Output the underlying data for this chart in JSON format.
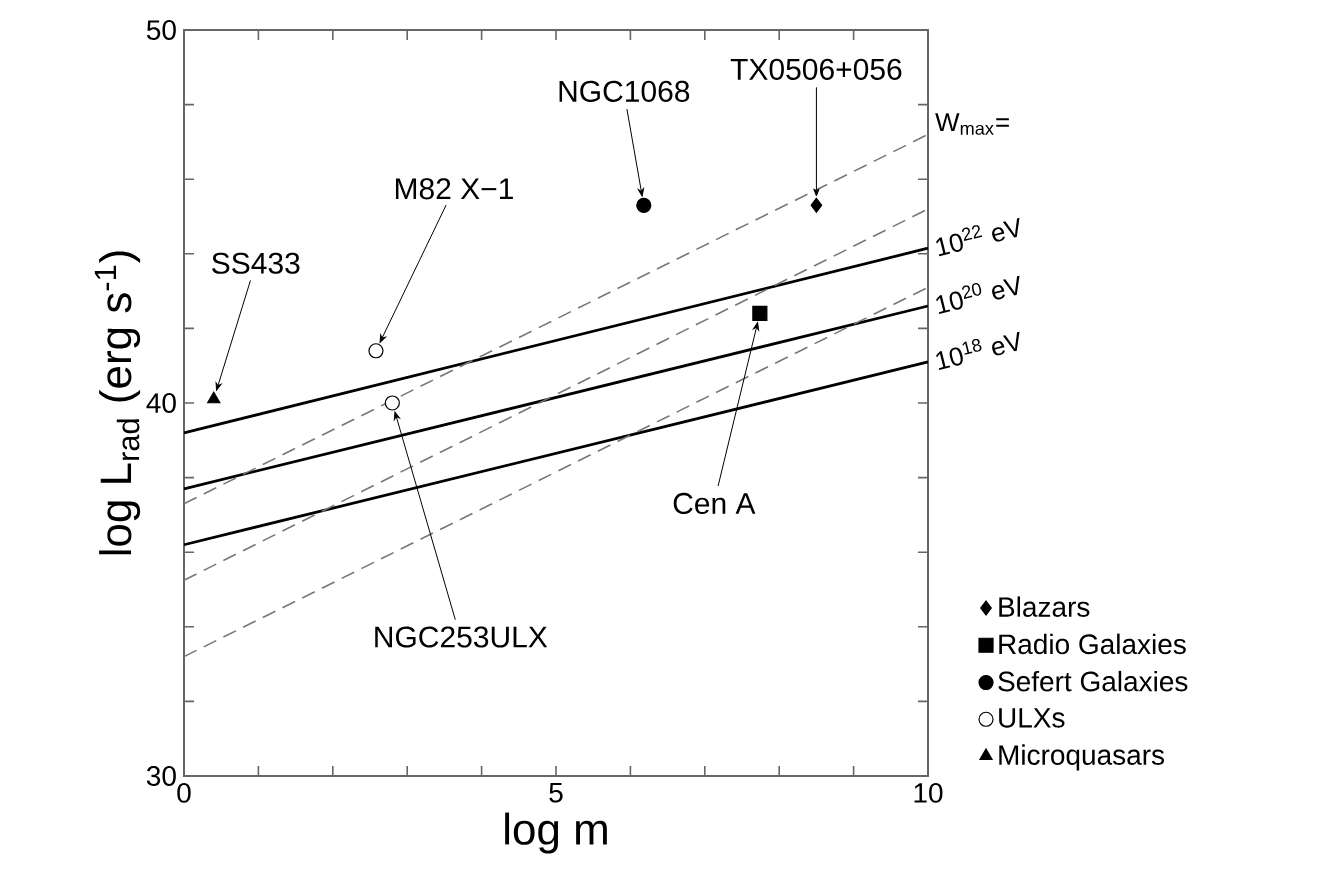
{
  "chart_data": {
    "type": "scatter",
    "xlabel": "log m",
    "ylabel": "log L$_{rad}$ (erg s$^{-1}$)",
    "xlim": [
      0,
      10
    ],
    "ylim": [
      30,
      50
    ],
    "xticks": [
      0,
      {
        "value": 1,
        "label": null
      },
      {
        "value": 2,
        "label": null
      },
      {
        "value": 3,
        "label": null
      },
      {
        "value": 4,
        "label": null
      },
      5,
      {
        "value": 6,
        "label": null
      },
      {
        "value": 7,
        "label": null
      },
      {
        "value": 8,
        "label": null
      },
      {
        "value": 9,
        "label": null
      },
      10
    ],
    "yticks": [
      30,
      {
        "value": 32,
        "label": null
      },
      {
        "value": 34,
        "label": null
      },
      {
        "value": 36,
        "label": null
      },
      {
        "value": 38,
        "label": null
      },
      40,
      {
        "value": 42,
        "label": null
      },
      {
        "value": 44,
        "label": null
      },
      {
        "value": 46,
        "label": null
      },
      {
        "value": 48,
        "label": null
      },
      50
    ],
    "legend": "right",
    "grid": false,
    "series": [
      {
        "name": "Blazars",
        "marker": "diamond",
        "color": "#000000",
        "x": [
          8.5
        ],
        "values": [
          45.3
        ]
      },
      {
        "name": "Radio Galaxies",
        "marker": "square",
        "color": "#000000",
        "x": [
          7.74
        ],
        "values": [
          42.4
        ]
      },
      {
        "name": "Sefert Galaxies",
        "marker": "circle",
        "color": "#000000",
        "x": [
          6.18
        ],
        "values": [
          45.3
        ]
      },
      {
        "name": "ULXs",
        "marker": "circle",
        "color": "#ffffff",
        "x": [
          2.58,
          2.8
        ],
        "values": [
          41.4,
          40.0
        ]
      },
      {
        "name": "Microquasars",
        "marker": "triangle",
        "color": "#000000",
        "x": [
          0.4
        ],
        "values": [
          40.1
        ]
      },
      {
        "name": "10$^{22}$ eV",
        "type": "line",
        "line_style": "solid",
        "color": "#000000",
        "x": [
          0,
          10
        ],
        "values": [
          39.2,
          44.15
        ]
      },
      {
        "name": "10$^{20}$ eV",
        "type": "line",
        "line_style": "solid",
        "color": "#000000",
        "x": [
          0,
          10
        ],
        "values": [
          37.7,
          42.6
        ]
      },
      {
        "name": "10$^{18}$ eV",
        "type": "line",
        "line_style": "solid",
        "color": "#000000",
        "x": [
          0,
          10
        ],
        "values": [
          36.2,
          41.1
        ]
      },
      {
        "type": "line",
        "line_style": "dashed",
        "color": "#777777",
        "x": [
          0,
          10
        ],
        "values": [
          37.3,
          47.2
        ]
      },
      {
        "type": "line",
        "line_style": "dashed",
        "color": "#777777",
        "x": [
          0,
          10
        ],
        "values": [
          35.25,
          45.2
        ]
      },
      {
        "type": "line",
        "line_style": "dashed",
        "color": "#777777",
        "x": [
          0,
          10
        ],
        "values": [
          33.2,
          43.1
        ]
      }
    ],
    "annotations": [
      {
        "text": "SS433",
        "x": 0.4,
        "y": 40.1
      },
      {
        "text": "M82 X−1",
        "x": 2.58,
        "y": 41.4
      },
      {
        "text": "NGC1068",
        "x": 6.18,
        "y": 45.3
      },
      {
        "text": "TX0506+056",
        "x": 8.5,
        "y": 45.3
      },
      {
        "text": "Cen A",
        "x": 7.74,
        "y": 42.4
      },
      {
        "text": "NGC253ULX",
        "x": 2.8,
        "y": 40.0
      },
      "W$_{max}$="
    ]
  }
}
